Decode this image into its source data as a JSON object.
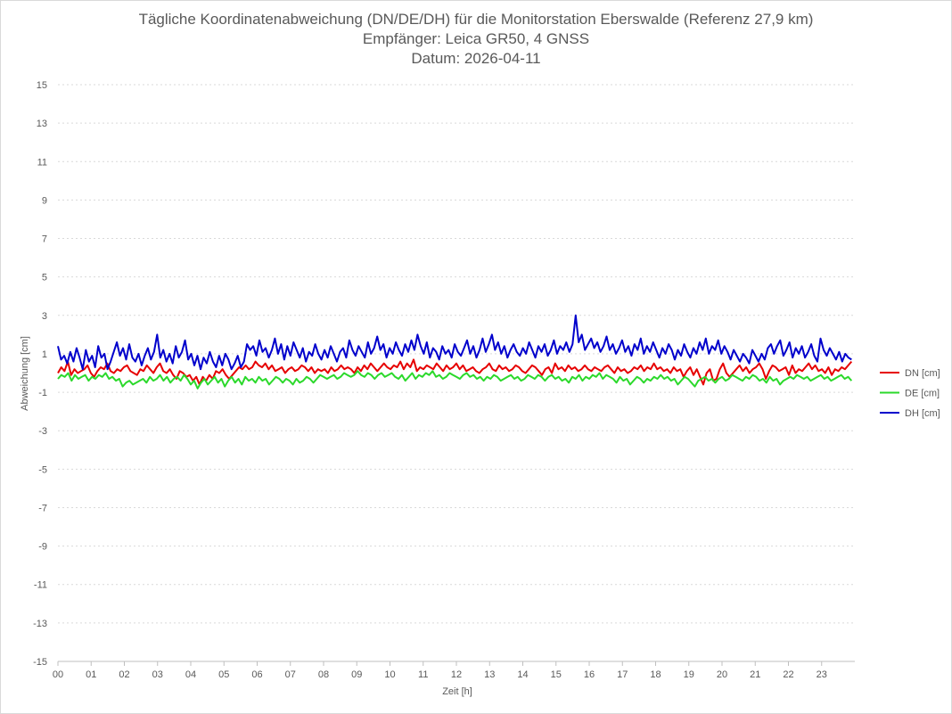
{
  "chart_data": {
    "type": "line",
    "title": "Tägliche Koordinatenabweichung (DN/DE/DH) für die Monitorstation Eberswalde (Referenz 27,9 km)",
    "subtitle": "Empfänger: Leica GR50, 4 GNSS",
    "date_line": "Datum: 2026-04-11",
    "xlabel": "Zeit [h]",
    "ylabel": "Abweichung [cm]",
    "xlim": [
      0,
      24
    ],
    "ylim": [
      -15,
      15
    ],
    "y_ticks": [
      15,
      13,
      11,
      9,
      7,
      5,
      3,
      1,
      -1,
      -3,
      -5,
      -7,
      -9,
      -11,
      -13,
      -15
    ],
    "x_ticks": [
      "00",
      "01",
      "02",
      "03",
      "04",
      "05",
      "06",
      "07",
      "08",
      "09",
      "10",
      "11",
      "12",
      "13",
      "14",
      "15",
      "16",
      "17",
      "18",
      "19",
      "20",
      "21",
      "22",
      "23"
    ],
    "grid": true,
    "legend_position": "right",
    "series": [
      {
        "name": "DN [cm]",
        "color": "#e60000",
        "values": [
          0.0,
          0.3,
          0.1,
          0.6,
          -0.1,
          0.2,
          0.0,
          0.1,
          0.2,
          0.4,
          0.0,
          -0.2,
          0.1,
          0.3,
          0.2,
          0.5,
          0.1,
          0.0,
          0.2,
          0.1,
          0.3,
          0.4,
          0.1,
          0.0,
          -0.1,
          0.2,
          0.1,
          0.4,
          0.2,
          0.0,
          0.3,
          0.5,
          0.1,
          0.0,
          0.2,
          -0.1,
          -0.3,
          0.1,
          0.0,
          -0.2,
          -0.1,
          -0.4,
          -0.2,
          -0.6,
          -0.2,
          -0.4,
          -0.1,
          -0.3,
          0.1,
          0.0,
          0.2,
          -0.1,
          -0.3,
          -0.1,
          0.1,
          0.3,
          0.2,
          0.4,
          0.2,
          0.3,
          0.6,
          0.4,
          0.3,
          0.5,
          0.2,
          0.4,
          0.1,
          0.2,
          0.3,
          0.0,
          0.2,
          0.3,
          0.1,
          0.2,
          0.4,
          0.3,
          0.1,
          0.3,
          0.0,
          0.2,
          0.1,
          0.2,
          0.0,
          0.3,
          0.1,
          0.2,
          0.4,
          0.2,
          0.3,
          0.2,
          0.0,
          0.3,
          0.1,
          0.4,
          0.2,
          0.5,
          0.3,
          0.1,
          0.3,
          0.5,
          0.3,
          0.2,
          0.4,
          0.3,
          0.6,
          0.2,
          0.5,
          0.3,
          0.7,
          0.1,
          0.3,
          0.2,
          0.4,
          0.3,
          0.2,
          0.5,
          0.3,
          0.1,
          0.4,
          0.2,
          0.3,
          0.5,
          0.2,
          0.4,
          0.1,
          0.2,
          0.3,
          0.1,
          0.0,
          0.2,
          0.3,
          0.5,
          0.2,
          0.1,
          0.4,
          0.2,
          0.3,
          0.1,
          0.2,
          0.4,
          0.3,
          0.1,
          0.0,
          0.2,
          0.4,
          0.3,
          0.1,
          -0.1,
          0.2,
          0.3,
          0.0,
          0.5,
          0.2,
          0.3,
          0.1,
          0.4,
          0.2,
          0.3,
          0.1,
          0.2,
          0.4,
          0.2,
          0.1,
          0.3,
          0.2,
          0.1,
          0.3,
          0.4,
          0.2,
          0.0,
          0.3,
          0.1,
          0.2,
          0.0,
          0.1,
          0.3,
          0.2,
          0.4,
          0.1,
          0.3,
          0.2,
          0.5,
          0.2,
          0.3,
          0.1,
          0.2,
          0.0,
          0.3,
          0.1,
          0.2,
          -0.2,
          0.1,
          0.3,
          -0.1,
          0.2,
          -0.2,
          -0.6,
          0.0,
          0.2,
          -0.4,
          -0.3,
          0.2,
          0.5,
          0.0,
          -0.2,
          0.0,
          0.2,
          0.4,
          0.1,
          0.3,
          0.0,
          0.2,
          0.3,
          0.5,
          0.2,
          -0.3,
          0.1,
          0.4,
          0.3,
          0.1,
          0.2,
          0.3,
          -0.1,
          0.4,
          0.0,
          0.2,
          0.1,
          0.3,
          0.5,
          0.2,
          0.4,
          0.1,
          0.2,
          0.0,
          0.3,
          -0.1,
          0.2,
          0.1,
          0.3,
          0.2,
          0.4,
          0.6
        ]
      },
      {
        "name": "DE [cm]",
        "color": "#2bd92b",
        "values": [
          -0.3,
          -0.1,
          -0.2,
          0.0,
          -0.4,
          -0.1,
          -0.3,
          -0.2,
          -0.1,
          -0.4,
          -0.2,
          -0.3,
          -0.1,
          -0.2,
          0.0,
          -0.3,
          -0.2,
          -0.4,
          -0.3,
          -0.7,
          -0.5,
          -0.4,
          -0.6,
          -0.5,
          -0.4,
          -0.3,
          -0.5,
          -0.2,
          -0.4,
          -0.3,
          -0.1,
          -0.4,
          -0.2,
          -0.5,
          -0.3,
          -0.2,
          -0.4,
          -0.1,
          -0.3,
          -0.6,
          -0.4,
          -0.8,
          -0.5,
          -0.3,
          -0.6,
          -0.4,
          -0.2,
          -0.5,
          -0.3,
          -0.7,
          -0.4,
          -0.2,
          -0.5,
          -0.3,
          -0.6,
          -0.2,
          -0.4,
          -0.3,
          -0.5,
          -0.2,
          -0.4,
          -0.3,
          -0.6,
          -0.4,
          -0.2,
          -0.3,
          -0.5,
          -0.3,
          -0.4,
          -0.6,
          -0.3,
          -0.5,
          -0.4,
          -0.2,
          -0.3,
          -0.5,
          -0.3,
          -0.1,
          -0.2,
          -0.3,
          -0.2,
          -0.1,
          -0.3,
          -0.2,
          0.0,
          -0.1,
          -0.2,
          -0.1,
          0.1,
          -0.1,
          -0.2,
          0.0,
          -0.1,
          -0.3,
          -0.1,
          0.0,
          -0.2,
          -0.1,
          0.0,
          -0.2,
          -0.3,
          -0.1,
          -0.4,
          -0.2,
          0.0,
          -0.3,
          -0.1,
          -0.2,
          0.0,
          -0.1,
          0.1,
          -0.2,
          -0.1,
          -0.3,
          -0.2,
          0.0,
          -0.1,
          -0.2,
          -0.3,
          -0.1,
          0.0,
          -0.2,
          -0.1,
          -0.3,
          -0.2,
          -0.4,
          -0.2,
          -0.3,
          -0.1,
          -0.2,
          -0.4,
          -0.3,
          -0.2,
          -0.1,
          -0.3,
          -0.2,
          -0.4,
          -0.3,
          -0.1,
          -0.2,
          -0.3,
          -0.1,
          -0.2,
          -0.4,
          -0.2,
          -0.1,
          -0.3,
          -0.2,
          -0.4,
          -0.3,
          -0.5,
          -0.2,
          -0.3,
          -0.1,
          -0.4,
          -0.2,
          -0.3,
          -0.1,
          -0.2,
          0.0,
          -0.3,
          -0.1,
          -0.2,
          -0.3,
          -0.5,
          -0.2,
          -0.4,
          -0.3,
          -0.6,
          -0.4,
          -0.2,
          -0.3,
          -0.5,
          -0.3,
          -0.4,
          -0.2,
          -0.3,
          -0.1,
          -0.3,
          -0.2,
          -0.4,
          -0.3,
          -0.6,
          -0.4,
          -0.2,
          -0.3,
          -0.5,
          -0.7,
          -0.4,
          -0.3,
          -0.2,
          -0.4,
          -0.3,
          -0.5,
          -0.3,
          -0.2,
          -0.4,
          -0.3,
          -0.1,
          -0.2,
          -0.3,
          -0.4,
          -0.2,
          -0.3,
          -0.1,
          -0.2,
          -0.4,
          -0.3,
          -0.5,
          -0.2,
          -0.4,
          -0.3,
          -0.6,
          -0.4,
          -0.3,
          -0.2,
          -0.3,
          -0.1,
          -0.2,
          -0.3,
          -0.2,
          -0.4,
          -0.3,
          -0.2,
          -0.1,
          -0.3,
          -0.2,
          -0.4,
          -0.3,
          -0.2,
          -0.1,
          -0.3,
          -0.2,
          -0.4
        ]
      },
      {
        "name": "DH [cm]",
        "color": "#0000cc",
        "values": [
          1.4,
          0.7,
          0.9,
          0.5,
          1.1,
          0.6,
          1.3,
          0.8,
          0.2,
          1.2,
          0.6,
          0.9,
          0.3,
          1.4,
          0.8,
          1.0,
          0.2,
          0.6,
          1.1,
          1.6,
          0.9,
          1.3,
          0.7,
          1.5,
          0.8,
          0.6,
          1.0,
          0.4,
          0.9,
          1.3,
          0.7,
          1.1,
          2.0,
          0.8,
          1.2,
          0.6,
          1.0,
          0.5,
          1.4,
          0.8,
          1.1,
          1.7,
          0.7,
          1.0,
          0.4,
          0.9,
          0.2,
          0.8,
          0.5,
          1.1,
          0.6,
          0.3,
          0.9,
          0.4,
          1.0,
          0.7,
          0.2,
          0.5,
          0.9,
          0.3,
          0.6,
          1.5,
          1.2,
          1.4,
          0.9,
          1.7,
          1.1,
          1.3,
          0.8,
          1.2,
          1.8,
          1.0,
          1.5,
          0.7,
          1.4,
          0.9,
          1.6,
          1.2,
          0.8,
          1.3,
          0.6,
          1.1,
          0.9,
          1.5,
          1.0,
          0.7,
          1.2,
          0.8,
          1.4,
          1.0,
          0.6,
          1.1,
          1.3,
          0.8,
          1.7,
          1.2,
          0.9,
          1.4,
          1.1,
          0.8,
          1.6,
          1.0,
          1.3,
          1.9,
          1.2,
          1.5,
          0.8,
          1.3,
          1.0,
          1.6,
          1.2,
          0.9,
          1.5,
          1.1,
          1.7,
          1.2,
          2.0,
          1.4,
          1.0,
          1.6,
          0.8,
          1.3,
          1.1,
          0.7,
          1.4,
          1.0,
          1.2,
          0.8,
          1.5,
          1.1,
          0.9,
          1.3,
          1.7,
          1.0,
          1.4,
          0.8,
          1.2,
          1.8,
          1.1,
          1.5,
          2.0,
          1.2,
          1.6,
          1.0,
          1.4,
          0.8,
          1.2,
          1.5,
          1.1,
          0.9,
          1.3,
          1.0,
          1.6,
          1.2,
          0.8,
          1.4,
          1.1,
          1.5,
          0.9,
          1.2,
          1.7,
          1.0,
          1.4,
          1.2,
          1.6,
          1.1,
          1.5,
          3.0,
          1.6,
          2.0,
          1.2,
          1.5,
          1.8,
          1.3,
          1.6,
          1.1,
          1.4,
          1.9,
          1.2,
          1.5,
          1.0,
          1.3,
          1.7,
          1.1,
          1.4,
          0.9,
          1.5,
          1.2,
          1.8,
          1.0,
          1.4,
          1.1,
          1.6,
          1.2,
          0.8,
          1.3,
          1.0,
          1.5,
          1.2,
          0.7,
          1.2,
          0.9,
          1.5,
          1.1,
          0.8,
          1.3,
          1.0,
          1.6,
          1.2,
          1.8,
          1.0,
          1.4,
          1.2,
          1.7,
          1.0,
          1.4,
          1.1,
          0.7,
          1.2,
          0.9,
          0.6,
          1.0,
          0.8,
          0.5,
          1.2,
          0.9,
          0.6,
          1.0,
          0.7,
          1.3,
          1.5,
          1.0,
          1.4,
          1.7,
          0.9,
          1.2,
          1.6,
          0.8,
          1.3,
          1.0,
          1.4,
          0.8,
          1.1,
          1.5,
          0.9,
          0.6,
          1.8,
          1.2,
          0.9,
          1.3,
          1.0,
          0.7,
          1.1,
          0.6,
          1.0,
          0.8,
          0.7
        ]
      }
    ]
  }
}
